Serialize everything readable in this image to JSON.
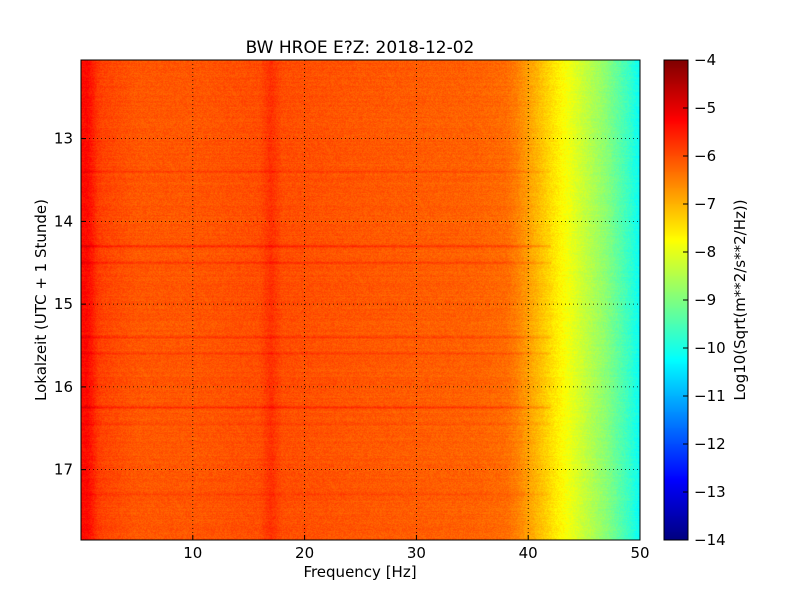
{
  "chart_data": {
    "type": "heatmap",
    "title": "BW HROE E?Z: 2018-12-02",
    "xlabel": "Frequency [Hz]",
    "ylabel": "Lokalzeit (UTC + 1 Stunde)",
    "xlim": [
      0,
      50
    ],
    "ylim": [
      17.85,
      12.05
    ],
    "x_ticks": [
      10,
      20,
      30,
      40,
      50
    ],
    "x_tick_labels": [
      "10",
      "20",
      "30",
      "40",
      "50"
    ],
    "y_ticks": [
      13,
      14,
      15,
      16,
      17
    ],
    "y_tick_labels": [
      "13",
      "14",
      "15",
      "16",
      "17"
    ],
    "grid": true,
    "colorbar": {
      "label": "Log10(Sqrt(m**2/s**2/Hz))",
      "range": [
        -14,
        -4
      ],
      "ticks": [
        -4,
        -5,
        -6,
        -7,
        -8,
        -9,
        -10,
        -11,
        -12,
        -13,
        -14
      ],
      "tick_labels": [
        "−4",
        "−5",
        "−6",
        "−7",
        "−8",
        "−9",
        "−10",
        "−11",
        "−12",
        "−13",
        "−14"
      ],
      "colormap": "jet"
    },
    "frequency_profile": {
      "x": [
        0,
        0.5,
        1,
        1.5,
        2,
        5,
        10,
        16,
        17,
        18,
        25,
        30,
        35,
        38,
        39,
        40,
        41,
        42,
        43,
        44,
        45,
        46,
        47,
        48,
        49,
        50
      ],
      "values": [
        -5.4,
        -5.3,
        -5.5,
        -5.8,
        -5.9,
        -6.1,
        -6.1,
        -6.0,
        -5.7,
        -6.0,
        -6.1,
        -6.15,
        -6.2,
        -6.3,
        -6.5,
        -6.8,
        -7.1,
        -7.4,
        -7.7,
        -8.0,
        -8.3,
        -8.6,
        -8.9,
        -9.3,
        -9.7,
        -10.2
      ]
    },
    "horizontal_bands": {
      "hour": [
        13.4,
        14.3,
        14.5,
        15.4,
        15.6,
        16.25,
        16.45,
        17.3
      ],
      "level_offset": [
        0.25,
        0.45,
        0.35,
        0.3,
        0.25,
        0.4,
        0.2,
        0.2
      ]
    }
  }
}
